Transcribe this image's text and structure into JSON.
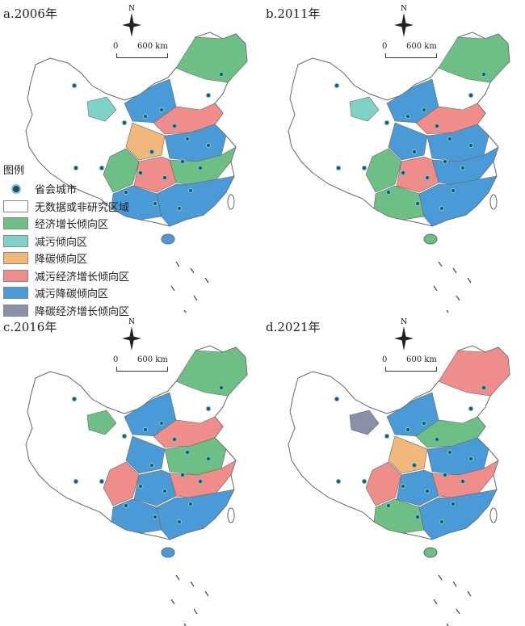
{
  "panels": [
    {
      "title": "a.2006年",
      "regions": [
        "teal",
        "blue",
        "green",
        "red",
        "orange",
        "blue",
        "green",
        "red",
        "green",
        "blue"
      ]
    },
    {
      "title": "b.2011年",
      "regions": [
        "teal",
        "blue",
        "green",
        "red",
        "blue",
        "blue",
        "green",
        "red",
        "blue",
        "green"
      ]
    },
    {
      "title": "c.2016年",
      "regions": [
        "green",
        "blue",
        "green",
        "red",
        "blue",
        "green",
        "red",
        "blue",
        "red",
        "blue"
      ]
    },
    {
      "title": "d.2021年",
      "regions": [
        "gray",
        "blue",
        "red",
        "green",
        "orange",
        "blue",
        "red",
        "blue",
        "red",
        "green"
      ]
    }
  ],
  "scale": {
    "zero": "0",
    "distance": "600 km"
  },
  "compass_label": "N",
  "legend": {
    "title": "图例",
    "capital": "省会城市",
    "items": [
      {
        "label": "无数据或非研究区域",
        "color": "#ffffff"
      },
      {
        "label": "经济增长倾向区",
        "color": "#6dbf86"
      },
      {
        "label": "减污倾向区",
        "color": "#7fd3c6"
      },
      {
        "label": "降碳倾向区",
        "color": "#f2b77a"
      },
      {
        "label": "减污经济增长倾向区",
        "color": "#ef8d8a"
      },
      {
        "label": "减污降碳倾向区",
        "color": "#4a9ad8"
      },
      {
        "label": "降碳经济增长倾向区",
        "color": "#8b8fa8"
      }
    ]
  },
  "colors": {
    "green": "#6dbf86",
    "teal": "#7fd3c6",
    "orange": "#f2b77a",
    "red": "#ef8d8a",
    "blue": "#4a9ad8",
    "gray": "#8b8fa8",
    "border": "#666666",
    "capital_fill": "#2c4a6b",
    "capital_ring": "#6cc"
  }
}
